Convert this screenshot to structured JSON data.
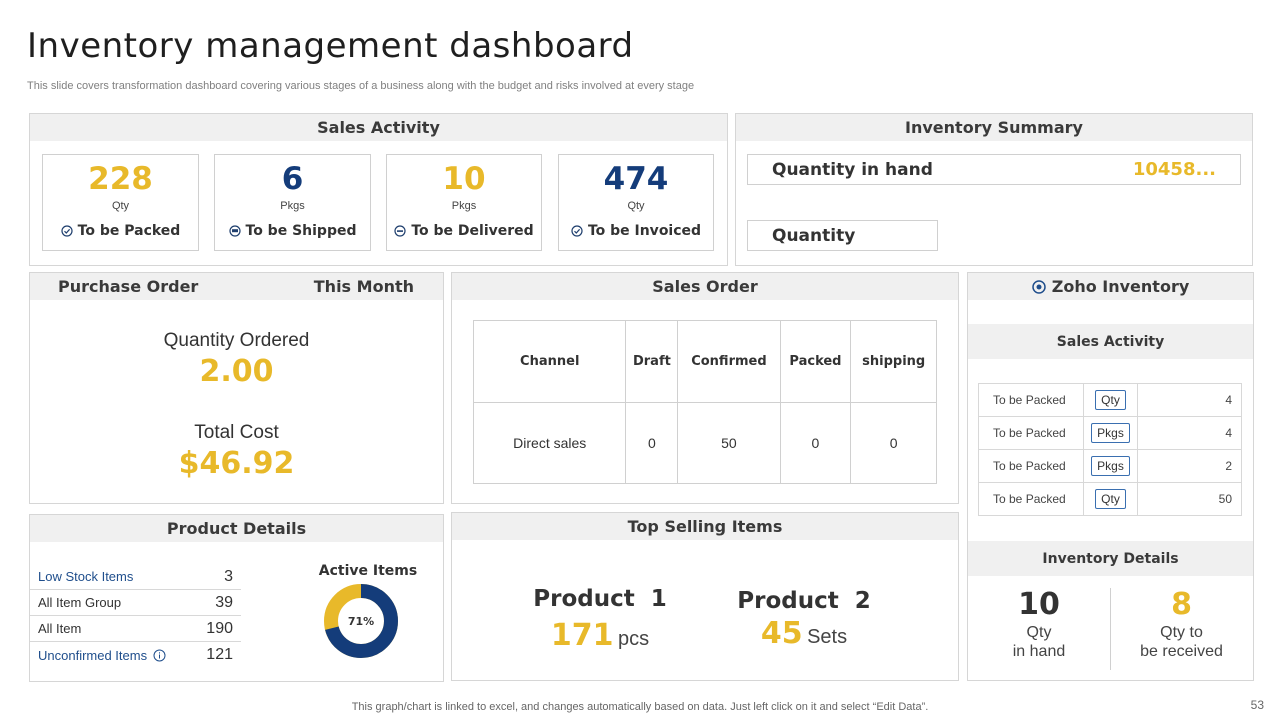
{
  "page": {
    "title": "Inventory management dashboard",
    "subtitle": "This slide covers transformation dashboard covering various stages of a business along with the budget and risks involved at every  stage",
    "footer": "This graph/chart is linked to excel,  and changes automatically based on data. Just left click on it and select “Edit Data”.",
    "page_number": "53"
  },
  "colors": {
    "gold": "#e8b92a",
    "navy": "#143c7a",
    "header_bg": "#f0f0f0",
    "border": "#d6d6d6"
  },
  "sales_activity": {
    "title": "Sales Activity",
    "cards": [
      {
        "value": "228",
        "unit": "Qty",
        "label": "To be Packed",
        "icon": "check-circle-icon",
        "color": "gold"
      },
      {
        "value": "6",
        "unit": "Pkgs",
        "label": "To be Shipped",
        "icon": "truck-circle-icon",
        "color": "navy"
      },
      {
        "value": "10",
        "unit": "Pkgs",
        "label": "To be Delivered",
        "icon": "minus-circle-icon",
        "color": "gold"
      },
      {
        "value": "474",
        "unit": "Qty",
        "label": "To be Invoiced",
        "icon": "check-circle-icon",
        "color": "navy"
      }
    ]
  },
  "inventory_summary": {
    "title": "Inventory Summary",
    "qty_in_hand_label": "Quantity in hand",
    "qty_in_hand_value": "10458...",
    "quantity_label": "Quantity"
  },
  "purchase_order": {
    "title": "Purchase Order",
    "period": "This Month",
    "qty_ordered_label": "Quantity Ordered",
    "qty_ordered_value": "2.00",
    "total_cost_label": "Total Cost",
    "total_cost_value": "$46.92"
  },
  "sales_order": {
    "title": "Sales Order",
    "columns": [
      "Channel",
      "Draft",
      "Confirmed",
      "Packed",
      "shipping"
    ],
    "rows": [
      {
        "channel": "Direct sales",
        "draft": "0",
        "confirmed": "50",
        "packed": "0",
        "shipping": "0"
      }
    ]
  },
  "zoho": {
    "title": "Zoho Inventory",
    "sales_activity_title": "Sales Activity",
    "rows": [
      {
        "label": "To be Packed",
        "unit": "Qty",
        "value": "4"
      },
      {
        "label": "To be Packed",
        "unit": "Pkgs",
        "value": "4"
      },
      {
        "label": "To be Packed",
        "unit": "Pkgs",
        "value": "2"
      },
      {
        "label": "To be Packed",
        "unit": "Qty",
        "value": "50"
      }
    ],
    "inventory_details_title": "Inventory Details",
    "in_hand_value": "10",
    "in_hand_label1": "Qty",
    "in_hand_label2": "in hand",
    "to_receive_value": "8",
    "to_receive_label1": "Qty to",
    "to_receive_label2": "be received"
  },
  "product_details": {
    "title": "Product Details",
    "items": [
      {
        "label": "Low Stock Items",
        "value": "3",
        "highlight": true,
        "info": false
      },
      {
        "label": "All Item Group",
        "value": "39",
        "highlight": false,
        "info": false
      },
      {
        "label": "All Item",
        "value": "190",
        "highlight": false,
        "info": false
      },
      {
        "label": "Unconfirmed Items",
        "value": "121",
        "highlight": true,
        "info": true
      }
    ],
    "active_items_title": "Active Items",
    "active_items_percent": 71,
    "active_items_label": "71%"
  },
  "top_selling": {
    "title": "Top Selling Items",
    "products": [
      {
        "name": "Product  1",
        "qty": "171",
        "unit": "pcs"
      },
      {
        "name": "Product  2",
        "qty": "45",
        "unit": "Sets"
      }
    ]
  }
}
